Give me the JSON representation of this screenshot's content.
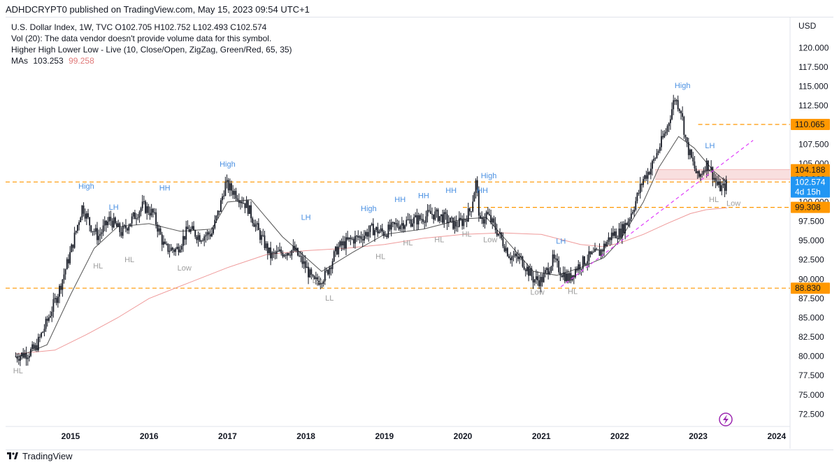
{
  "header": {
    "publish_line": "ADHDCRYPT0 published on TradingView.com, May 15, 2023 09:54 UTC+1"
  },
  "legend": {
    "symbol_line": "U.S. Dollar Index, 1W, TVC  O102.705  H102.752  L102.493  C102.574",
    "vol_line": "Vol (20): The data vendor doesn't provide volume data for this symbol.",
    "indicator_line": "Higher High Lower Low - Live (10, Close/Open, ZigZag, Green/Red, 65, 35)",
    "ma_label": "MAs",
    "ma_fast": "103.253",
    "ma_slow": "99.258"
  },
  "footer": {
    "brand": "TradingView"
  },
  "colors": {
    "up": "#131722",
    "level": "#ff9800",
    "ma_fast": "#131722",
    "ma_slow": "#ef9a9a",
    "trendline": "#e040fb",
    "high_label": "#4a90e2",
    "low_label": "#9e9e9e",
    "price_tag": "#2196f3"
  },
  "chart_data": {
    "type": "line",
    "title": "U.S. Dollar Index, 1W, TVC",
    "currency": "USD",
    "ylim": [
      71.0,
      122.5
    ],
    "y_ticks": [
      "72.500",
      "75.000",
      "77.500",
      "80.000",
      "82.500",
      "85.000",
      "87.500",
      "90.000",
      "92.500",
      "95.000",
      "97.500",
      "100.000",
      "102.500",
      "105.000",
      "107.500",
      "110.000",
      "112.500",
      "115.000",
      "117.500",
      "120.000"
    ],
    "x_range": [
      2014.3,
      2024.2
    ],
    "x_ticks": [
      2015,
      2016,
      2017,
      2018,
      2019,
      2020,
      2021,
      2022,
      2023,
      2024
    ],
    "grid": false,
    "series": [
      {
        "name": "price",
        "x": [
          2014.3,
          2014.45,
          2014.55,
          2014.7,
          2014.85,
          2015.0,
          2015.15,
          2015.25,
          2015.35,
          2015.5,
          2015.65,
          2015.8,
          2015.92,
          2016.05,
          2016.2,
          2016.35,
          2016.5,
          2016.65,
          2016.8,
          2016.9,
          2016.97,
          2017.1,
          2017.25,
          2017.4,
          2017.55,
          2017.7,
          2017.85,
          2018.0,
          2018.1,
          2018.25,
          2018.4,
          2018.55,
          2018.7,
          2018.85,
          2019.0,
          2019.15,
          2019.3,
          2019.45,
          2019.6,
          2019.75,
          2019.9,
          2020.0,
          2020.1,
          2020.17,
          2020.22,
          2020.3,
          2020.45,
          2020.6,
          2020.75,
          2020.9,
          2021.0,
          2021.15,
          2021.25,
          2021.35,
          2021.45,
          2021.6,
          2021.75,
          2021.9,
          2022.0,
          2022.1,
          2022.2,
          2022.3,
          2022.4,
          2022.5,
          2022.6,
          2022.7,
          2022.78,
          2022.85,
          2022.95,
          2023.0,
          2023.1,
          2023.15,
          2023.25,
          2023.32,
          2023.37
        ],
        "values": [
          80.0,
          80.4,
          81.0,
          84.5,
          88.5,
          93.5,
          99.5,
          97.0,
          95.5,
          97.8,
          96.0,
          98.0,
          99.5,
          98.5,
          94.0,
          93.8,
          96.5,
          95.5,
          96.0,
          99.2,
          102.3,
          101.2,
          99.5,
          96.0,
          93.0,
          93.5,
          93.8,
          91.5,
          89.5,
          90.5,
          94.0,
          95.0,
          95.5,
          96.5,
          96.0,
          97.0,
          97.5,
          97.8,
          98.5,
          98.0,
          97.0,
          97.5,
          99.0,
          102.8,
          97.0,
          98.5,
          96.0,
          93.0,
          92.5,
          90.0,
          89.8,
          92.5,
          91.0,
          90.0,
          91.5,
          92.8,
          93.5,
          95.8,
          96.0,
          97.5,
          100.0,
          103.0,
          104.5,
          107.0,
          109.5,
          113.5,
          112.0,
          107.5,
          104.5,
          103.0,
          105.0,
          104.5,
          102.0,
          101.8,
          102.5
        ]
      },
      {
        "name": "ma_fast",
        "x": [
          2014.3,
          2014.7,
          2015.0,
          2015.3,
          2015.6,
          2016.0,
          2016.4,
          2016.8,
          2017.0,
          2017.3,
          2017.7,
          2018.0,
          2018.2,
          2018.6,
          2019.0,
          2019.5,
          2020.0,
          2020.3,
          2020.6,
          2020.9,
          2021.2,
          2021.5,
          2021.8,
          2022.0,
          2022.3,
          2022.5,
          2022.75,
          2022.95,
          2023.2,
          2023.37
        ],
        "values": [
          79.8,
          81.5,
          88.0,
          94.0,
          96.8,
          97.2,
          96.2,
          96.5,
          100.0,
          100.3,
          95.5,
          92.8,
          91.0,
          93.5,
          95.8,
          96.5,
          97.8,
          98.0,
          94.5,
          91.0,
          90.5,
          91.5,
          92.8,
          95.0,
          100.0,
          104.5,
          108.5,
          107.0,
          104.0,
          102.5
        ]
      },
      {
        "name": "ma_slow",
        "x": [
          2014.3,
          2014.8,
          2015.2,
          2015.6,
          2016.0,
          2016.5,
          2017.0,
          2017.5,
          2018.0,
          2018.5,
          2019.0,
          2019.5,
          2020.0,
          2020.5,
          2021.0,
          2021.5,
          2021.8,
          2022.0,
          2022.3,
          2022.6,
          2022.9,
          2023.1,
          2023.37
        ],
        "values": [
          80.3,
          80.8,
          82.8,
          85.0,
          87.5,
          89.5,
          91.5,
          93.2,
          93.7,
          94.0,
          94.5,
          95.3,
          95.8,
          96.0,
          95.8,
          94.5,
          94.2,
          94.7,
          95.8,
          97.2,
          98.5,
          99.0,
          99.26
        ]
      }
    ],
    "levels": [
      "110.065",
      "104.188",
      "102.960",
      "99.308",
      "88.830"
    ],
    "level_values": [
      110.065,
      104.188,
      102.96,
      99.308,
      88.83
    ],
    "last_price": {
      "value": "102.574",
      "countdown": "4d 15h"
    },
    "trendline": {
      "x": [
        2021.25,
        2023.7
      ],
      "y": [
        89.0,
        108.0
      ]
    },
    "pivots": [
      {
        "label": "HL",
        "x": 2014.33,
        "y": 77.8,
        "kind": "low"
      },
      {
        "label": "High",
        "x": 2015.2,
        "y": 101.7,
        "kind": "high"
      },
      {
        "label": "HL",
        "x": 2015.35,
        "y": 91.4,
        "kind": "low"
      },
      {
        "label": "LH",
        "x": 2015.55,
        "y": 99.0,
        "kind": "high"
      },
      {
        "label": "HL",
        "x": 2015.75,
        "y": 92.2,
        "kind": "low"
      },
      {
        "label": "HH",
        "x": 2016.2,
        "y": 101.5,
        "kind": "high"
      },
      {
        "label": "Low",
        "x": 2016.45,
        "y": 91.1,
        "kind": "low"
      },
      {
        "label": "High",
        "x": 2017.0,
        "y": 104.6,
        "kind": "high"
      },
      {
        "label": "LH",
        "x": 2018.0,
        "y": 97.7,
        "kind": "high"
      },
      {
        "label": "Low",
        "x": 2018.17,
        "y": 89.5,
        "kind": "low"
      },
      {
        "label": "LL",
        "x": 2018.3,
        "y": 87.2,
        "kind": "low"
      },
      {
        "label": "High",
        "x": 2018.8,
        "y": 98.8,
        "kind": "high"
      },
      {
        "label": "HL",
        "x": 2018.95,
        "y": 92.6,
        "kind": "low"
      },
      {
        "label": "HH",
        "x": 2019.2,
        "y": 100.0,
        "kind": "high"
      },
      {
        "label": "HL",
        "x": 2019.3,
        "y": 94.4,
        "kind": "low"
      },
      {
        "label": "HH",
        "x": 2019.5,
        "y": 100.5,
        "kind": "high"
      },
      {
        "label": "HL",
        "x": 2019.7,
        "y": 94.8,
        "kind": "low"
      },
      {
        "label": "HH",
        "x": 2019.85,
        "y": 101.2,
        "kind": "high"
      },
      {
        "label": "HL",
        "x": 2020.05,
        "y": 95.5,
        "kind": "low"
      },
      {
        "label": "HH",
        "x": 2020.25,
        "y": 101.2,
        "kind": "high"
      },
      {
        "label": "High",
        "x": 2020.33,
        "y": 103.1,
        "kind": "high"
      },
      {
        "label": "Low",
        "x": 2020.35,
        "y": 94.8,
        "kind": "low"
      },
      {
        "label": "Low",
        "x": 2020.95,
        "y": 88.0,
        "kind": "low"
      },
      {
        "label": "LH",
        "x": 2021.25,
        "y": 94.6,
        "kind": "high"
      },
      {
        "label": "HL",
        "x": 2021.4,
        "y": 88.1,
        "kind": "low"
      },
      {
        "label": "High",
        "x": 2022.8,
        "y": 114.8,
        "kind": "high"
      },
      {
        "label": "LH",
        "x": 2023.15,
        "y": 107.0,
        "kind": "high"
      },
      {
        "label": "HL",
        "x": 2023.2,
        "y": 100.0,
        "kind": "low"
      },
      {
        "label": "Low",
        "x": 2023.45,
        "y": 99.5,
        "kind": "low"
      }
    ]
  }
}
